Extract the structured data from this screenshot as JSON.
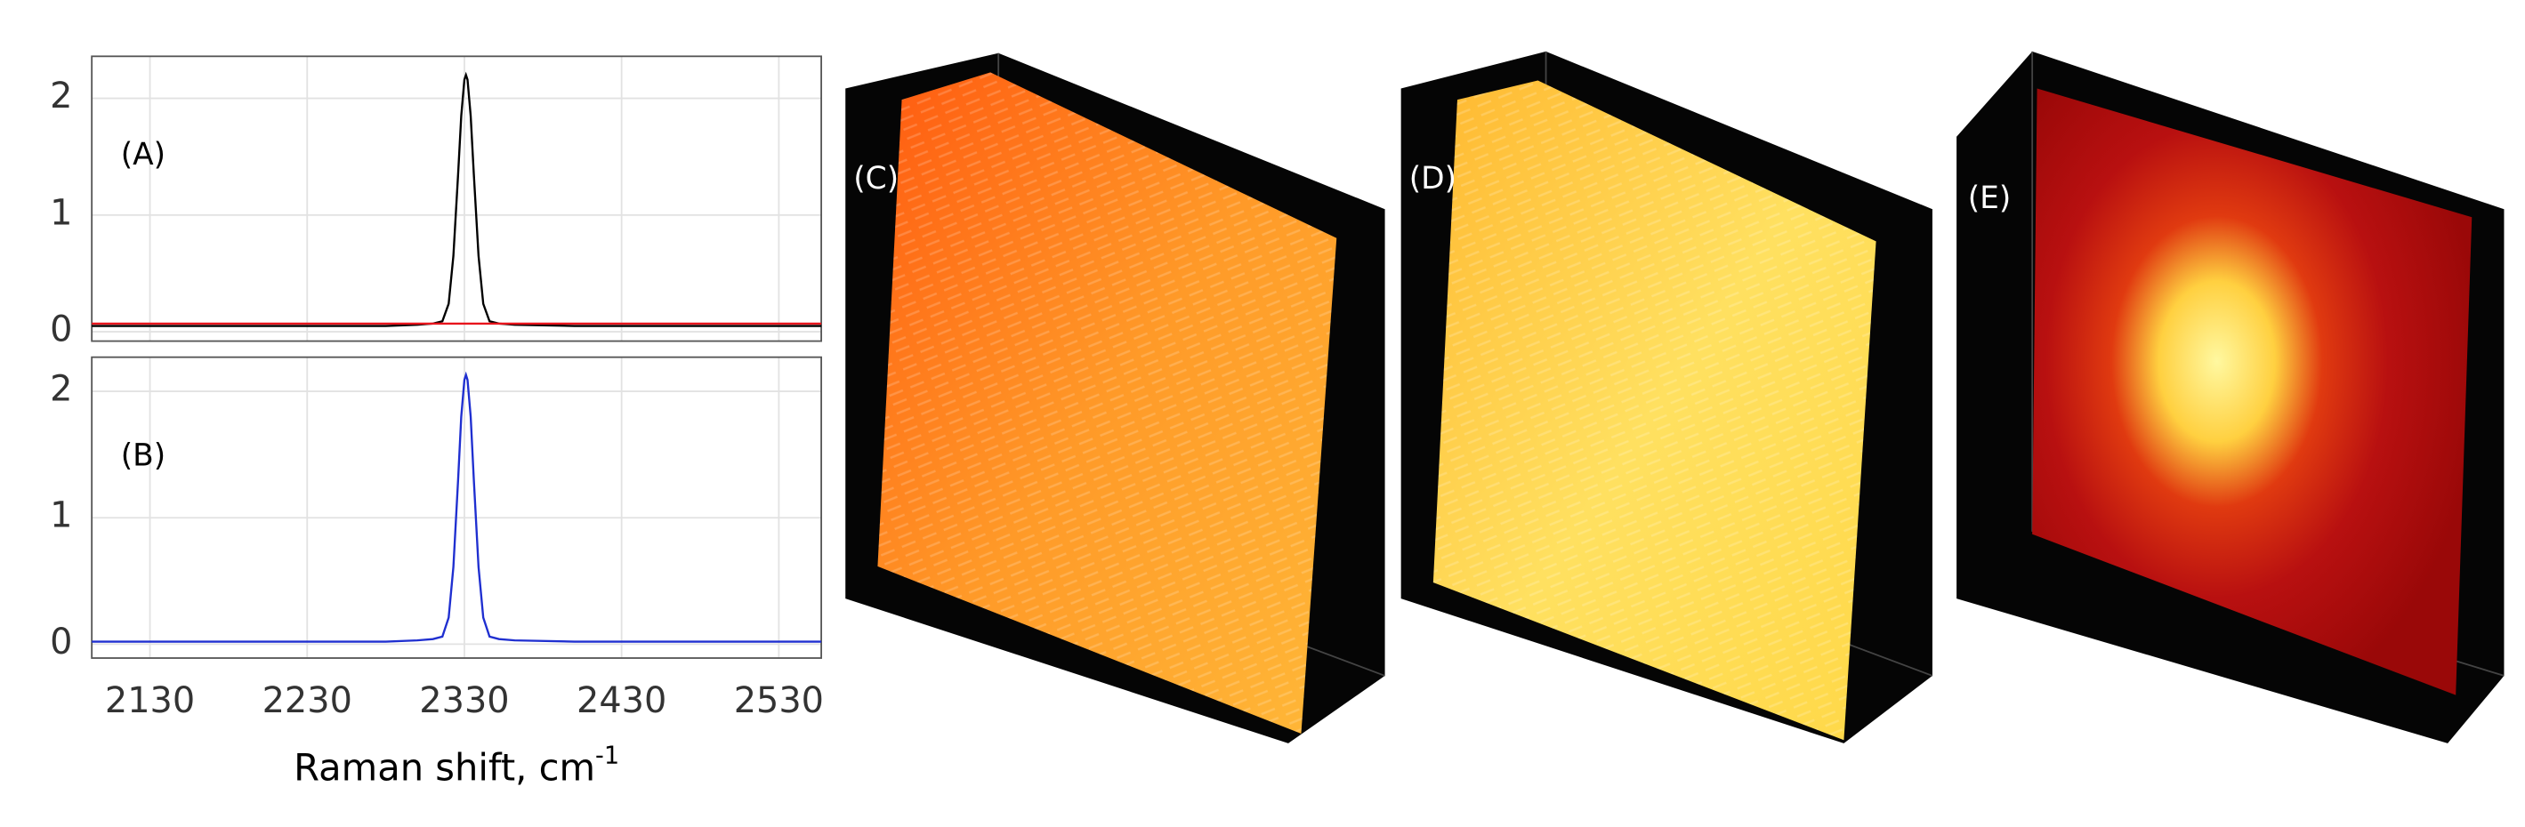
{
  "chart_data": [
    {
      "type": "line",
      "panel_label": "(A)",
      "x": [
        2093,
        2200,
        2280,
        2300,
        2310,
        2316,
        2320,
        2323,
        2326,
        2328,
        2330,
        2331,
        2332,
        2334,
        2336,
        2339,
        2342,
        2346,
        2352,
        2362,
        2400,
        2480,
        2557
      ],
      "series": [
        {
          "color": "#000000",
          "values": [
            0.05,
            0.05,
            0.05,
            0.06,
            0.07,
            0.09,
            0.24,
            0.65,
            1.35,
            1.85,
            2.16,
            2.2,
            2.16,
            1.85,
            1.35,
            0.65,
            0.24,
            0.09,
            0.07,
            0.06,
            0.05,
            0.05,
            0.05
          ]
        },
        {
          "color": "#e8141c",
          "values": [
            0.07,
            0.07,
            0.07,
            0.07,
            0.07,
            0.07,
            0.07,
            0.07,
            0.07,
            0.07,
            0.07,
            0.07,
            0.07,
            0.07,
            0.07,
            0.07,
            0.07,
            0.07,
            0.07,
            0.07,
            0.07,
            0.07,
            0.07
          ]
        }
      ],
      "xlim": [
        2093,
        2557
      ],
      "xticks": [
        2130,
        2230,
        2330,
        2430,
        2530
      ],
      "show_xtick_labels": false,
      "ylim": [
        -0.08,
        2.36
      ],
      "yticks": [
        0,
        1,
        2
      ],
      "grid": true
    },
    {
      "type": "line",
      "panel_label": "(B)",
      "x": [
        2093,
        2200,
        2280,
        2300,
        2310,
        2316,
        2320,
        2323,
        2326,
        2328,
        2330,
        2331,
        2332,
        2334,
        2336,
        2339,
        2342,
        2346,
        2352,
        2362,
        2400,
        2480,
        2557
      ],
      "series": [
        {
          "color": "#1f2fd0",
          "values": [
            0.02,
            0.02,
            0.02,
            0.03,
            0.04,
            0.06,
            0.21,
            0.61,
            1.3,
            1.8,
            2.09,
            2.13,
            2.09,
            1.8,
            1.3,
            0.61,
            0.21,
            0.06,
            0.04,
            0.03,
            0.02,
            0.02,
            0.02
          ]
        }
      ],
      "xlim": [
        2093,
        2557
      ],
      "xticks": [
        2130,
        2230,
        2330,
        2430,
        2530
      ],
      "show_xtick_labels": true,
      "ylim": [
        -0.11,
        2.27
      ],
      "yticks": [
        0,
        1,
        2
      ],
      "grid": true,
      "xlabel": "Raman shift, cm",
      "xlabel_superscript": "-1"
    }
  ],
  "panels": [
    {
      "label": "(C)"
    },
    {
      "label": "(D)"
    },
    {
      "label": "(E)"
    }
  ]
}
